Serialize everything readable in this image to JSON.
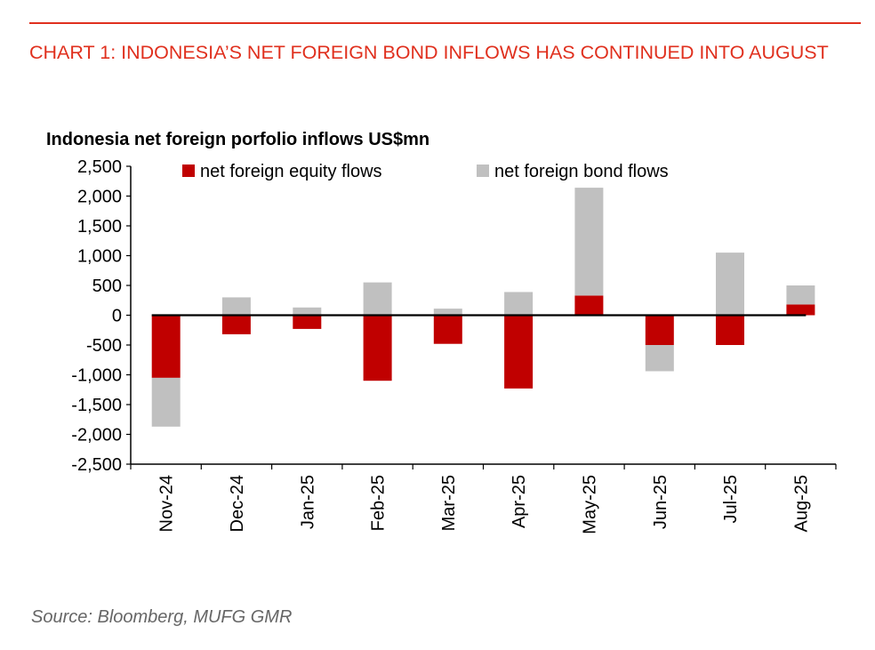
{
  "heading": "CHART 1: INDONESIA’S NET FOREIGN BOND INFLOWS HAS CONTINUED INTO AUGUST",
  "source": "Source: Bloomberg, MUFG GMR",
  "colors": {
    "accent": "#e0301e",
    "equity": "#c00000",
    "bond": "#c0c0c0",
    "axis": "#000000"
  },
  "chart_data": {
    "type": "bar",
    "stacked": true,
    "title": "Indonesia net foreign porfolio inflows US$mn",
    "categories": [
      "Nov-24",
      "Dec-24",
      "Jan-25",
      "Feb-25",
      "Mar-25",
      "Apr-25",
      "May-25",
      "Jun-25",
      "Jul-25",
      "Aug-25"
    ],
    "series": [
      {
        "name": "net foreign equity flows",
        "color": "#c00000",
        "values": [
          -1050,
          -320,
          -230,
          -1100,
          -480,
          -1230,
          330,
          -500,
          -500,
          180
        ]
      },
      {
        "name": "net foreign bond flows",
        "color": "#c0c0c0",
        "values": [
          -820,
          300,
          130,
          550,
          110,
          390,
          1810,
          -440,
          1050,
          320
        ]
      }
    ],
    "ylim": [
      -2500,
      2500
    ],
    "yticks": [
      -2500,
      -2000,
      -1500,
      -1000,
      -500,
      0,
      500,
      1000,
      1500,
      2000,
      2500
    ],
    "ytick_labels": [
      "-2,500",
      "-2,000",
      "-1,500",
      "-1,000",
      "-500",
      "0",
      "500",
      "1,000",
      "1,500",
      "2,000",
      "2,500"
    ],
    "xlabel": "",
    "ylabel": "",
    "legend": "top",
    "grid": false
  }
}
